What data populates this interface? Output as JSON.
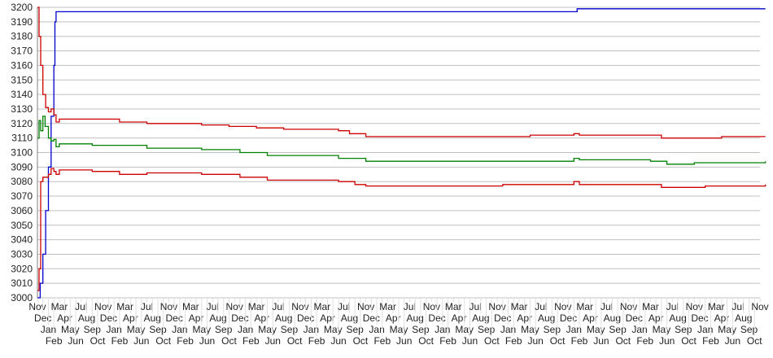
{
  "chart_data": {
    "type": "line",
    "title": "",
    "xlabel": "",
    "ylabel": "",
    "ylim": [
      3000,
      3200
    ],
    "yticks": [
      3000,
      3010,
      3020,
      3030,
      3040,
      3050,
      3060,
      3070,
      3080,
      3090,
      3100,
      3110,
      3120,
      3130,
      3140,
      3150,
      3160,
      3170,
      3180,
      3190,
      3200
    ],
    "grid": true,
    "legend": "none",
    "categories": [
      "Nov",
      "Dec",
      "Jan",
      "Feb",
      "Mar",
      "Apr",
      "May",
      "Jun",
      "Jul",
      "Aug",
      "Sep",
      "Oct",
      "Nov",
      "Dec",
      "Jan",
      "Feb",
      "Mar",
      "Apr",
      "May",
      "Jun",
      "Jul",
      "Aug",
      "Sep",
      "Oct",
      "Nov",
      "Dec",
      "Jan",
      "Feb",
      "Mar",
      "Apr",
      "May",
      "Jun",
      "Jul",
      "Aug",
      "Sep",
      "Oct",
      "Nov",
      "Dec",
      "Jan",
      "Feb",
      "Mar",
      "Apr",
      "May",
      "Jun",
      "Jul",
      "Aug",
      "Sep",
      "Oct",
      "Nov",
      "Dec",
      "Jan",
      "Feb",
      "Mar",
      "Apr",
      "May",
      "Jun",
      "Jul",
      "Aug",
      "Sep",
      "Oct",
      "Nov",
      "Dec",
      "Jan",
      "Feb",
      "Mar",
      "Apr",
      "May",
      "Jun",
      "Jul",
      "Aug",
      "Sep",
      "Oct",
      "Nov",
      "Dec",
      "Jan",
      "Feb",
      "Mar",
      "Apr",
      "May",
      "Jun",
      "Jul",
      "Aug",
      "Sep",
      "Oct",
      "Nov",
      "Dec",
      "Jan",
      "Feb",
      "Mar",
      "Apr",
      "May",
      "Jun",
      "Jul",
      "Aug",
      "Sep",
      "Oct",
      "Nov",
      "Dec",
      "Jan",
      "Feb",
      "Mar",
      "Apr",
      "May",
      "Jun",
      "Jul",
      "Aug",
      "Sep",
      "Oct",
      "Nov",
      "Dec",
      "Jan",
      "Feb",
      "Mar",
      "Apr",
      "May",
      "Jun",
      "Jul",
      "Aug",
      "Sep",
      "Oct",
      "Nov",
      "Dec",
      "Jan",
      "Feb",
      "Mar",
      "Apr",
      "May",
      "Jun",
      "Jul",
      "Aug",
      "Sep",
      "Oct",
      "Nov"
    ],
    "series": [
      {
        "color": "#0000cc",
        "points": [
          [
            0,
            3000
          ],
          [
            0.5,
            3010
          ],
          [
            1,
            3030
          ],
          [
            1.5,
            3060
          ],
          [
            2,
            3090
          ],
          [
            2.5,
            3125
          ],
          [
            3,
            3160
          ],
          [
            3.2,
            3190
          ],
          [
            3.4,
            3197
          ],
          [
            98.5,
            3197
          ],
          [
            98.6,
            3199
          ],
          [
            133,
            3199
          ]
        ]
      },
      {
        "color": "#cc0000",
        "points": [
          [
            0,
            3200
          ],
          [
            0.3,
            3180
          ],
          [
            0.6,
            3160
          ],
          [
            1,
            3140
          ],
          [
            1.5,
            3131
          ],
          [
            2,
            3128
          ],
          [
            2.5,
            3130
          ],
          [
            3,
            3126
          ],
          [
            3.4,
            3121
          ],
          [
            4,
            3123
          ],
          [
            10,
            3123
          ],
          [
            15,
            3121
          ],
          [
            20,
            3120
          ],
          [
            30,
            3119
          ],
          [
            35,
            3118
          ],
          [
            40,
            3117
          ],
          [
            45,
            3116
          ],
          [
            55,
            3115
          ],
          [
            57,
            3113
          ],
          [
            60,
            3111
          ],
          [
            70,
            3111
          ],
          [
            85,
            3111
          ],
          [
            90,
            3112
          ],
          [
            98,
            3113
          ],
          [
            99,
            3112
          ],
          [
            112,
            3112
          ],
          [
            114,
            3110
          ],
          [
            120,
            3110
          ],
          [
            125,
            3111
          ],
          [
            133,
            3111
          ]
        ]
      },
      {
        "color": "#008000",
        "points": [
          [
            0,
            3110
          ],
          [
            0.3,
            3122
          ],
          [
            0.6,
            3115
          ],
          [
            1,
            3125
          ],
          [
            1.4,
            3118
          ],
          [
            2,
            3110
          ],
          [
            2.5,
            3108
          ],
          [
            3,
            3109
          ],
          [
            3.4,
            3104
          ],
          [
            4,
            3106
          ],
          [
            10,
            3105
          ],
          [
            20,
            3103
          ],
          [
            30,
            3102
          ],
          [
            37,
            3100
          ],
          [
            42,
            3098
          ],
          [
            55,
            3096
          ],
          [
            60,
            3094
          ],
          [
            85,
            3094
          ],
          [
            98,
            3096
          ],
          [
            99,
            3095
          ],
          [
            112,
            3094
          ],
          [
            115,
            3092
          ],
          [
            120,
            3093
          ],
          [
            133,
            3094
          ]
        ]
      },
      {
        "color": "#cc0000",
        "points": [
          [
            0,
            3005
          ],
          [
            0.3,
            3020
          ],
          [
            0.6,
            3080
          ],
          [
            1,
            3083
          ],
          [
            2,
            3085
          ],
          [
            2.5,
            3089
          ],
          [
            3,
            3087
          ],
          [
            3.4,
            3085
          ],
          [
            4,
            3088
          ],
          [
            10,
            3087
          ],
          [
            15,
            3085
          ],
          [
            20,
            3086
          ],
          [
            30,
            3085
          ],
          [
            37,
            3083
          ],
          [
            42,
            3081
          ],
          [
            55,
            3080
          ],
          [
            58,
            3078
          ],
          [
            60,
            3077
          ],
          [
            85,
            3078
          ],
          [
            98,
            3080
          ],
          [
            99,
            3078
          ],
          [
            112,
            3078
          ],
          [
            114,
            3076
          ],
          [
            118,
            3076
          ],
          [
            122,
            3077
          ],
          [
            133,
            3078
          ]
        ]
      }
    ]
  },
  "colors": {
    "grid": "#c0c0c0",
    "axis": "#808080"
  }
}
